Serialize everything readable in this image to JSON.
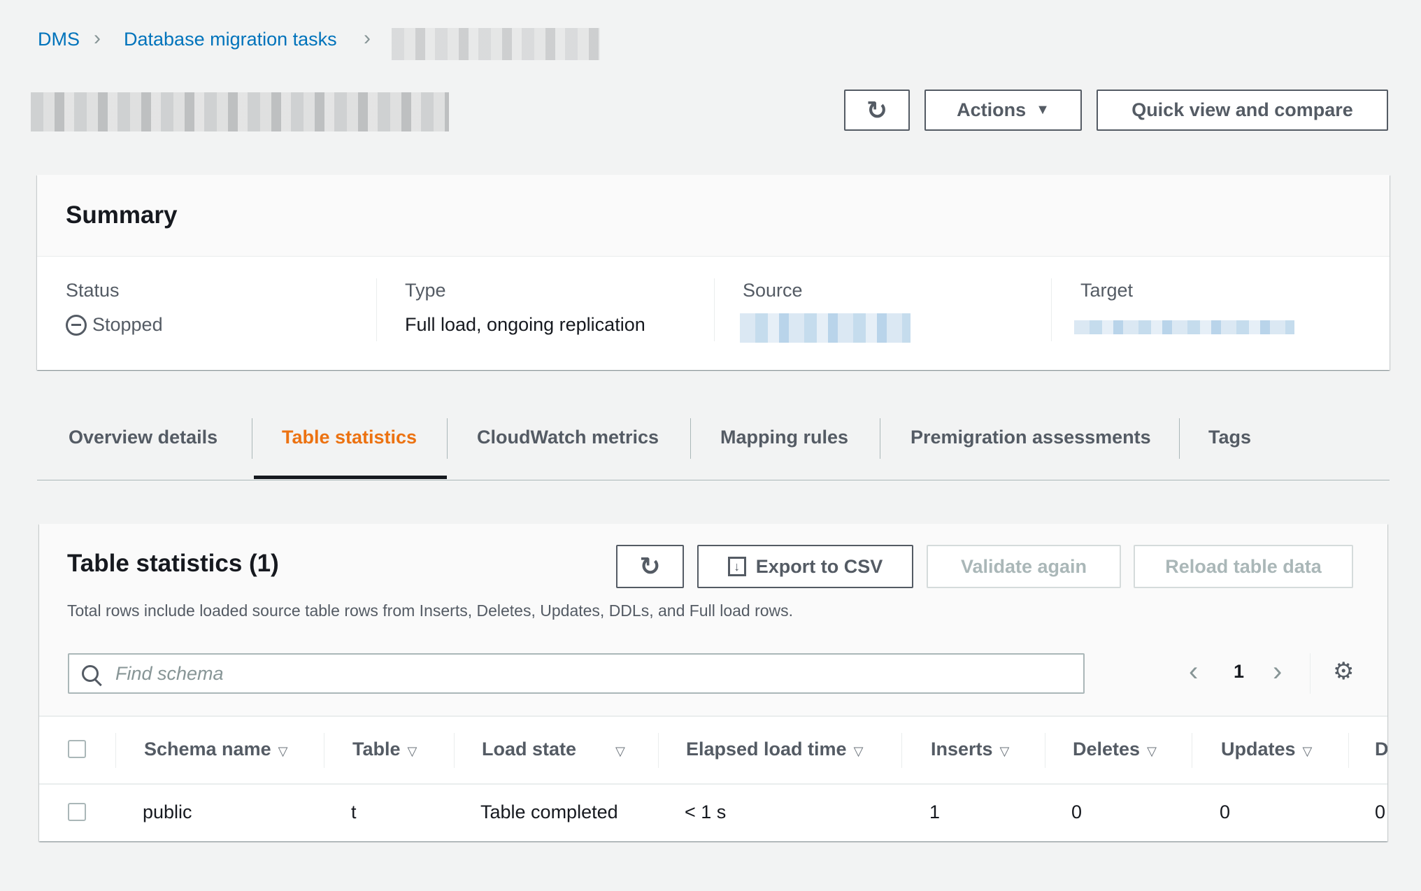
{
  "breadcrumb": {
    "items": [
      "DMS",
      "Database migration tasks"
    ]
  },
  "header": {
    "actions_label": "Actions",
    "quick_view_label": "Quick view and compare"
  },
  "summary": {
    "title": "Summary",
    "status_label": "Status",
    "status_value": "Stopped",
    "type_label": "Type",
    "type_value": "Full load, ongoing replication",
    "source_label": "Source",
    "target_label": "Target"
  },
  "tabs": [
    {
      "label": "Overview details"
    },
    {
      "label": "Table statistics",
      "active": true
    },
    {
      "label": "CloudWatch metrics"
    },
    {
      "label": "Mapping rules"
    },
    {
      "label": "Premigration assessments"
    },
    {
      "label": "Tags"
    }
  ],
  "table_stats": {
    "title": "Table statistics (1)",
    "export_label": "Export to CSV",
    "validate_label": "Validate again",
    "reload_label": "Reload table data",
    "description": "Total rows include loaded source table rows from Inserts, Deletes, Updates, DDLs, and Full load rows.",
    "search_placeholder": "Find schema",
    "page": "1",
    "columns": [
      "Schema name",
      "Table",
      "Load state",
      "Elapsed load time",
      "Inserts",
      "Deletes",
      "Updates",
      "D"
    ],
    "rows": [
      [
        "public",
        "t",
        "Table completed",
        "< 1 s",
        "1",
        "0",
        "0",
        "0"
      ]
    ]
  },
  "colors": {
    "accent": "#ec7211",
    "link": "#0073bb"
  }
}
